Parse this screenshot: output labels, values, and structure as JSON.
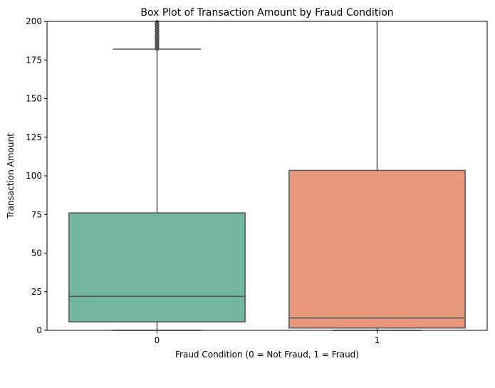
{
  "chart_data": {
    "type": "box",
    "title": "Box Plot of Transaction Amount by Fraud Condition",
    "xlabel": "Fraud Condition (0 = Not Fraud, 1 = Fraud)",
    "ylabel": "Transaction Amount",
    "ylim": [
      0,
      200
    ],
    "yticks": [
      0,
      25,
      50,
      75,
      100,
      125,
      150,
      175,
      200
    ],
    "categories": [
      "0",
      "1"
    ],
    "boxes": [
      {
        "category": "0",
        "whisker_low": 0,
        "q1": 5.5,
        "median": 22,
        "q3": 76,
        "whisker_high": 182,
        "outliers_from": 182,
        "outliers_to": 200,
        "color": "#72b5a0"
      },
      {
        "category": "1",
        "whisker_low": 0,
        "q1": 1.5,
        "median": 8,
        "q3": 103.5,
        "whisker_high": 200,
        "color": "#e8987a"
      }
    ],
    "grid": false,
    "line_color": "#555555"
  }
}
